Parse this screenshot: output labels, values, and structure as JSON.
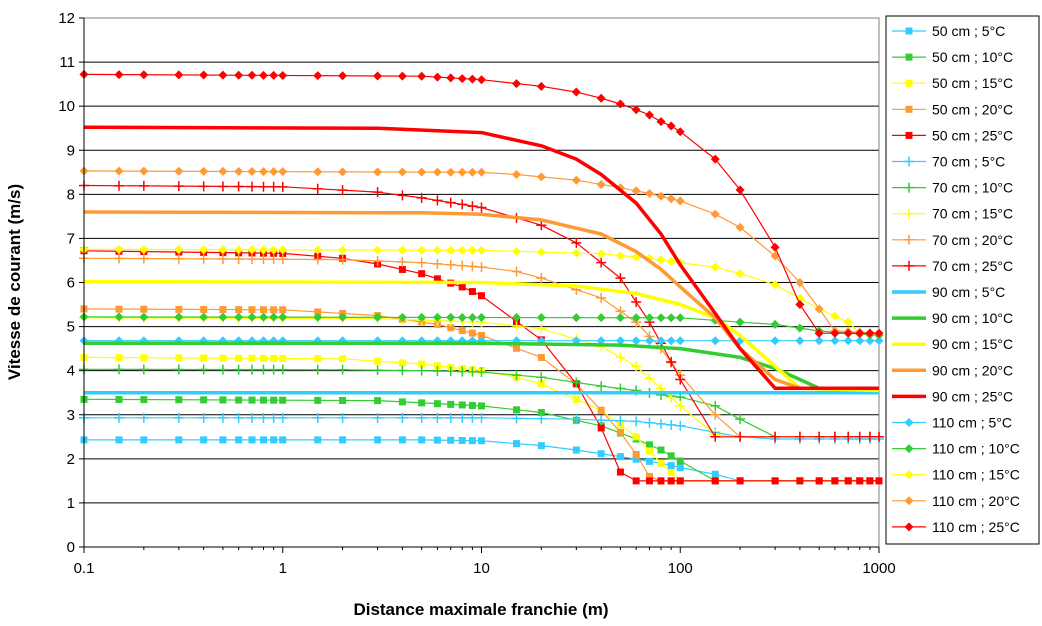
{
  "chart_data": {
    "type": "line",
    "title": "",
    "xlabel": "Distance maximale franchie (m)",
    "ylabel": "Vitesse de courant (m/s)",
    "xscale": "log",
    "xlim": [
      0.1,
      1000
    ],
    "ylim": [
      0,
      12
    ],
    "x_ticks": [
      "0.1",
      "1",
      "10",
      "100",
      "1000"
    ],
    "y_ticks": [
      "0",
      "1",
      "2",
      "3",
      "4",
      "5",
      "6",
      "7",
      "8",
      "9",
      "10",
      "11",
      "12"
    ],
    "grid": "horizontal",
    "legend_position": "right",
    "marker_x": [
      0.1,
      0.15,
      0.2,
      0.3,
      0.4,
      0.5,
      0.6,
      0.7,
      0.8,
      0.9,
      1,
      1.5,
      2,
      3,
      4,
      5,
      6,
      7,
      8,
      9,
      10,
      15,
      20,
      30,
      40,
      50,
      60,
      70,
      80,
      90,
      100,
      150,
      200,
      300,
      400,
      500,
      600,
      700,
      800,
      900,
      1000
    ],
    "series": [
      {
        "name": "50 cm ; 5°C",
        "color": "#33ccff",
        "marker": "square",
        "points": [
          [
            0.1,
            2.43
          ],
          [
            5,
            2.43
          ],
          [
            10,
            2.41
          ],
          [
            20,
            2.3
          ],
          [
            30,
            2.2
          ],
          [
            50,
            2.05
          ],
          [
            80,
            1.9
          ],
          [
            100,
            1.8
          ],
          [
            150,
            1.65
          ],
          [
            200,
            1.5
          ],
          [
            1000,
            1.5
          ]
        ]
      },
      {
        "name": "50 cm ; 10°C",
        "color": "#33cc33",
        "marker": "square",
        "points": [
          [
            0.1,
            3.35
          ],
          [
            3,
            3.32
          ],
          [
            10,
            3.2
          ],
          [
            20,
            3.05
          ],
          [
            40,
            2.75
          ],
          [
            60,
            2.45
          ],
          [
            80,
            2.2
          ],
          [
            100,
            1.95
          ],
          [
            150,
            1.5
          ],
          [
            1000,
            1.5
          ]
        ]
      },
      {
        "name": "50 cm ; 15°C",
        "color": "#ffff00",
        "marker": "square",
        "points": [
          [
            0.1,
            4.3
          ],
          [
            2,
            4.27
          ],
          [
            5,
            4.15
          ],
          [
            10,
            4.0
          ],
          [
            15,
            3.85
          ],
          [
            20,
            3.7
          ],
          [
            40,
            3.1
          ],
          [
            60,
            2.5
          ],
          [
            80,
            1.9
          ],
          [
            100,
            1.5
          ],
          [
            1000,
            1.5
          ]
        ]
      },
      {
        "name": "50 cm ; 20°C",
        "color": "#ff9933",
        "marker": "square",
        "points": [
          [
            0.1,
            5.4
          ],
          [
            1,
            5.38
          ],
          [
            3,
            5.25
          ],
          [
            6,
            5.05
          ],
          [
            10,
            4.8
          ],
          [
            20,
            4.3
          ],
          [
            30,
            3.7
          ],
          [
            40,
            3.1
          ],
          [
            50,
            2.6
          ],
          [
            60,
            2.1
          ],
          [
            70,
            1.6
          ],
          [
            80,
            1.5
          ],
          [
            1000,
            1.5
          ]
        ]
      },
      {
        "name": "50 cm ; 25°C",
        "color": "#ff0000",
        "marker": "square",
        "points": [
          [
            0.1,
            6.72
          ],
          [
            1,
            6.66
          ],
          [
            2,
            6.55
          ],
          [
            3,
            6.42
          ],
          [
            5,
            6.2
          ],
          [
            8,
            5.9
          ],
          [
            10,
            5.7
          ],
          [
            20,
            4.7
          ],
          [
            30,
            3.7
          ],
          [
            40,
            2.7
          ],
          [
            50,
            1.7
          ],
          [
            60,
            1.5
          ],
          [
            1000,
            1.5
          ]
        ]
      },
      {
        "name": "70 cm ; 5°C",
        "color": "#33ccff",
        "marker": "plus",
        "points": [
          [
            0.1,
            2.93
          ],
          [
            10,
            2.93
          ],
          [
            30,
            2.9
          ],
          [
            60,
            2.85
          ],
          [
            100,
            2.75
          ],
          [
            150,
            2.6
          ],
          [
            200,
            2.5
          ],
          [
            300,
            2.45
          ],
          [
            1000,
            2.45
          ]
        ]
      },
      {
        "name": "70 cm ; 10°C",
        "color": "#33cc33",
        "marker": "plus",
        "points": [
          [
            0.1,
            4.03
          ],
          [
            2,
            4.02
          ],
          [
            5,
            4.0
          ],
          [
            10,
            3.97
          ],
          [
            20,
            3.85
          ],
          [
            40,
            3.65
          ],
          [
            60,
            3.55
          ],
          [
            80,
            3.45
          ],
          [
            100,
            3.4
          ],
          [
            150,
            3.2
          ],
          [
            200,
            2.9
          ],
          [
            300,
            2.5
          ],
          [
            1000,
            2.5
          ]
        ]
      },
      {
        "name": "70 cm ; 15°C",
        "color": "#ffff00",
        "marker": "plus",
        "points": [
          [
            0.1,
            5.2
          ],
          [
            3,
            5.18
          ],
          [
            10,
            5.1
          ],
          [
            20,
            4.95
          ],
          [
            40,
            4.55
          ],
          [
            60,
            4.1
          ],
          [
            80,
            3.6
          ],
          [
            100,
            3.2
          ],
          [
            150,
            2.55
          ],
          [
            200,
            2.5
          ],
          [
            1000,
            2.5
          ]
        ]
      },
      {
        "name": "70 cm ; 20°C",
        "color": "#ff9933",
        "marker": "plus",
        "points": [
          [
            0.1,
            6.55
          ],
          [
            2,
            6.52
          ],
          [
            5,
            6.45
          ],
          [
            10,
            6.35
          ],
          [
            15,
            6.25
          ],
          [
            20,
            6.1
          ],
          [
            40,
            5.65
          ],
          [
            60,
            5.1
          ],
          [
            80,
            4.5
          ],
          [
            100,
            3.9
          ],
          [
            150,
            3.0
          ],
          [
            200,
            2.5
          ],
          [
            1000,
            2.5
          ]
        ]
      },
      {
        "name": "70 cm ; 25°C",
        "color": "#ff0000",
        "marker": "plus",
        "points": [
          [
            0.1,
            8.2
          ],
          [
            1,
            8.17
          ],
          [
            3,
            8.05
          ],
          [
            5,
            7.92
          ],
          [
            10,
            7.7
          ],
          [
            20,
            7.3
          ],
          [
            30,
            6.9
          ],
          [
            50,
            6.1
          ],
          [
            70,
            5.1
          ],
          [
            90,
            4.2
          ],
          [
            100,
            3.8
          ],
          [
            150,
            2.5
          ],
          [
            1000,
            2.5
          ]
        ]
      },
      {
        "name": "90 cm ; 5°C",
        "color": "#33ccff",
        "marker": "none",
        "points": [
          [
            0.1,
            3.5
          ],
          [
            1000,
            3.5
          ]
        ]
      },
      {
        "name": "90 cm ; 10°C",
        "color": "#33cc33",
        "marker": "none",
        "points": [
          [
            0.1,
            4.62
          ],
          [
            10,
            4.62
          ],
          [
            50,
            4.58
          ],
          [
            100,
            4.5
          ],
          [
            200,
            4.3
          ],
          [
            300,
            4.05
          ],
          [
            400,
            3.8
          ],
          [
            500,
            3.6
          ],
          [
            1000,
            3.55
          ]
        ]
      },
      {
        "name": "90 cm ; 15°C",
        "color": "#ffff00",
        "marker": "none",
        "points": [
          [
            0.1,
            6.02
          ],
          [
            10,
            6.0
          ],
          [
            30,
            5.92
          ],
          [
            60,
            5.75
          ],
          [
            100,
            5.5
          ],
          [
            150,
            5.2
          ],
          [
            200,
            4.8
          ],
          [
            300,
            4.1
          ],
          [
            400,
            3.6
          ],
          [
            1000,
            3.55
          ]
        ]
      },
      {
        "name": "90 cm ; 20°C",
        "color": "#ff9933",
        "marker": "none",
        "points": [
          [
            0.1,
            7.6
          ],
          [
            5,
            7.58
          ],
          [
            10,
            7.55
          ],
          [
            20,
            7.42
          ],
          [
            40,
            7.1
          ],
          [
            60,
            6.7
          ],
          [
            80,
            6.3
          ],
          [
            100,
            5.9
          ],
          [
            150,
            5.2
          ],
          [
            200,
            4.5
          ],
          [
            300,
            3.8
          ],
          [
            400,
            3.6
          ],
          [
            1000,
            3.6
          ]
        ]
      },
      {
        "name": "90 cm ; 25°C",
        "color": "#ff0000",
        "marker": "none",
        "points": [
          [
            0.1,
            9.52
          ],
          [
            3,
            9.5
          ],
          [
            10,
            9.4
          ],
          [
            20,
            9.1
          ],
          [
            30,
            8.8
          ],
          [
            40,
            8.45
          ],
          [
            60,
            7.8
          ],
          [
            80,
            7.1
          ],
          [
            100,
            6.4
          ],
          [
            150,
            5.3
          ],
          [
            200,
            4.5
          ],
          [
            300,
            3.6
          ],
          [
            1000,
            3.6
          ]
        ]
      },
      {
        "name": "110 cm ; 5°C",
        "color": "#33ccff",
        "marker": "diamond",
        "points": [
          [
            0.1,
            4.68
          ],
          [
            1000,
            4.68
          ]
        ]
      },
      {
        "name": "110 cm ; 10°C",
        "color": "#33cc33",
        "marker": "diamond",
        "points": [
          [
            0.1,
            5.22
          ],
          [
            100,
            5.2
          ],
          [
            200,
            5.1
          ],
          [
            300,
            5.05
          ],
          [
            500,
            4.9
          ],
          [
            1000,
            4.8
          ]
        ]
      },
      {
        "name": "110 cm ; 15°C",
        "color": "#ffff00",
        "marker": "diamond",
        "points": [
          [
            0.1,
            6.75
          ],
          [
            10,
            6.73
          ],
          [
            40,
            6.65
          ],
          [
            70,
            6.55
          ],
          [
            100,
            6.45
          ],
          [
            150,
            6.35
          ],
          [
            200,
            6.2
          ],
          [
            300,
            5.95
          ],
          [
            500,
            5.4
          ],
          [
            700,
            5.1
          ],
          [
            800,
            4.85
          ],
          [
            1000,
            4.85
          ]
        ]
      },
      {
        "name": "110 cm ; 20°C",
        "color": "#ff9933",
        "marker": "diamond",
        "points": [
          [
            0.1,
            8.53
          ],
          [
            10,
            8.5
          ],
          [
            15,
            8.45
          ],
          [
            30,
            8.32
          ],
          [
            50,
            8.15
          ],
          [
            70,
            8.02
          ],
          [
            100,
            7.85
          ],
          [
            150,
            7.55
          ],
          [
            200,
            7.25
          ],
          [
            300,
            6.6
          ],
          [
            400,
            6.0
          ],
          [
            500,
            5.4
          ],
          [
            600,
            4.9
          ],
          [
            1000,
            4.85
          ]
        ]
      },
      {
        "name": "110 cm ; 25°C",
        "color": "#ff0000",
        "marker": "diamond",
        "points": [
          [
            0.1,
            10.72
          ],
          [
            5,
            10.68
          ],
          [
            10,
            10.6
          ],
          [
            20,
            10.45
          ],
          [
            30,
            10.32
          ],
          [
            40,
            10.18
          ],
          [
            50,
            10.05
          ],
          [
            60,
            9.92
          ],
          [
            70,
            9.8
          ],
          [
            80,
            9.65
          ],
          [
            90,
            9.55
          ],
          [
            100,
            9.42
          ],
          [
            150,
            8.8
          ],
          [
            200,
            8.1
          ],
          [
            300,
            6.8
          ],
          [
            400,
            5.5
          ],
          [
            500,
            4.85
          ],
          [
            1000,
            4.85
          ]
        ]
      }
    ]
  }
}
